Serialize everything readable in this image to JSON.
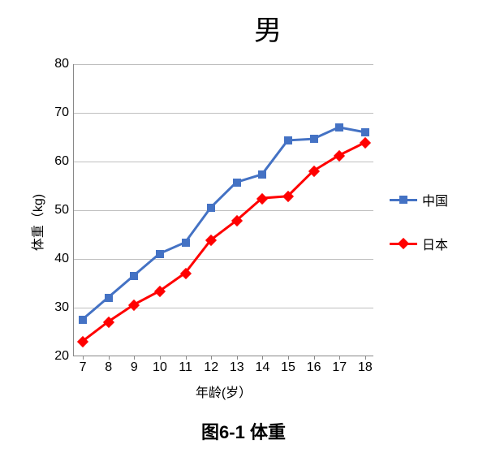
{
  "chart": {
    "type": "line",
    "title": "男",
    "title_fontsize": 34,
    "x_axis": {
      "label": "年龄(岁）",
      "label_fontsize": 16,
      "ticks": [
        7,
        8,
        9,
        10,
        11,
        12,
        13,
        14,
        15,
        16,
        17,
        18
      ]
    },
    "y_axis": {
      "label": "体重（kg)",
      "label_fontsize": 16,
      "min": 20,
      "max": 80,
      "tick_step": 10,
      "ticks": [
        20,
        30,
        40,
        50,
        60,
        70,
        80
      ]
    },
    "grid_color": "#bfbfbf",
    "axis_color": "#888888",
    "background_color": "#ffffff",
    "series": [
      {
        "name": "中国",
        "color": "#4472c4",
        "marker": "square",
        "marker_size": 10,
        "line_width": 3,
        "x": [
          7,
          8,
          9,
          10,
          11,
          12,
          13,
          14,
          15,
          16,
          17,
          18
        ],
        "y": [
          27.5,
          32.0,
          36.5,
          41.0,
          43.3,
          50.5,
          55.7,
          57.3,
          64.3,
          64.6,
          67.0,
          66.0
        ]
      },
      {
        "name": "日本",
        "color": "#ff0000",
        "marker": "diamond",
        "marker_size": 10,
        "line_width": 3,
        "x": [
          7,
          8,
          9,
          10,
          11,
          12,
          13,
          14,
          15,
          16,
          17,
          18
        ],
        "y": [
          23.0,
          27.0,
          30.5,
          33.3,
          37.0,
          43.8,
          47.8,
          52.4,
          52.8,
          58.0,
          61.2,
          63.8
        ]
      }
    ],
    "legend": {
      "position": "right",
      "items": [
        {
          "label": "中国",
          "seriesIndex": 0
        },
        {
          "label": "日本",
          "seriesIndex": 1
        }
      ]
    }
  },
  "caption": "图6-1 体重",
  "caption_fontsize": 22
}
